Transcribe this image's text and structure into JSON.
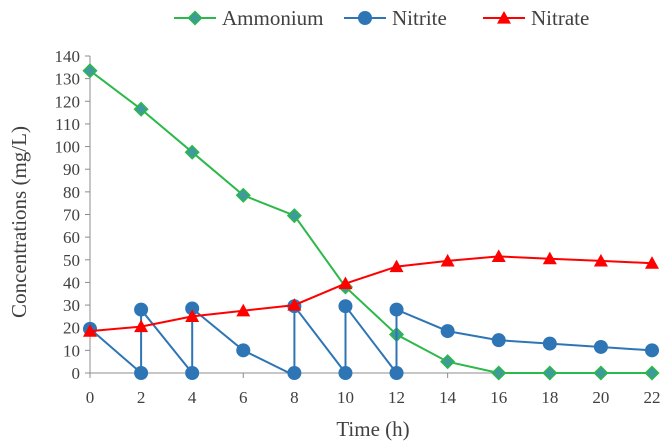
{
  "chart_data": {
    "type": "line",
    "title": "",
    "xlabel": "Time (h)",
    "ylabel": "Concentrations (mg/L)",
    "xlim": [
      0,
      22
    ],
    "ylim": [
      0,
      140
    ],
    "xticks": [
      0,
      2,
      4,
      6,
      8,
      10,
      12,
      14,
      16,
      18,
      20,
      22
    ],
    "yticks": [
      0,
      10,
      20,
      30,
      40,
      50,
      60,
      70,
      80,
      90,
      100,
      110,
      120,
      130,
      140
    ],
    "grid": false,
    "legend_position": "top",
    "series": [
      {
        "name": "Ammonium",
        "color": "#2db84a",
        "marker": "diamond",
        "marker_color": "#3d9b9b",
        "points": [
          [
            0,
            133.5
          ],
          [
            2,
            116.5
          ],
          [
            4,
            97.5
          ],
          [
            6,
            78.5
          ],
          [
            8,
            69.5
          ],
          [
            10,
            38
          ],
          [
            12,
            17
          ],
          [
            14,
            5
          ],
          [
            16,
            0
          ],
          [
            18,
            0
          ],
          [
            20,
            0
          ],
          [
            22,
            0
          ]
        ]
      },
      {
        "name": "Nitrite",
        "color": "#2e75b6",
        "marker": "circle",
        "marker_color": "#2e75b6",
        "points": [
          [
            0,
            19.5
          ],
          [
            2,
            0
          ],
          [
            2,
            28
          ],
          [
            4,
            0
          ],
          [
            4,
            28.5
          ],
          [
            6,
            10
          ],
          [
            7.8,
            0
          ],
          [
            8,
            0
          ],
          [
            8,
            29.5
          ],
          [
            10,
            0
          ],
          [
            10,
            29.5
          ],
          [
            12,
            0
          ],
          [
            12,
            28
          ],
          [
            14,
            18.5
          ],
          [
            16,
            14.5
          ],
          [
            18,
            13
          ],
          [
            20,
            11.5
          ],
          [
            22,
            10
          ]
        ],
        "hidden_marker_points": [
          [
            7.8,
            0
          ]
        ]
      },
      {
        "name": "Nitrate",
        "color": "#ff0000",
        "marker": "triangle",
        "marker_color": "#ff0000",
        "points": [
          [
            0,
            18.5
          ],
          [
            2,
            20.5
          ],
          [
            4,
            25
          ],
          [
            6,
            27.5
          ],
          [
            8,
            30
          ],
          [
            10,
            39.5
          ],
          [
            12,
            47
          ],
          [
            14,
            49.5
          ],
          [
            16,
            51.5
          ],
          [
            18,
            50.5
          ],
          [
            20,
            49.5
          ],
          [
            22,
            48.5
          ]
        ]
      }
    ]
  }
}
